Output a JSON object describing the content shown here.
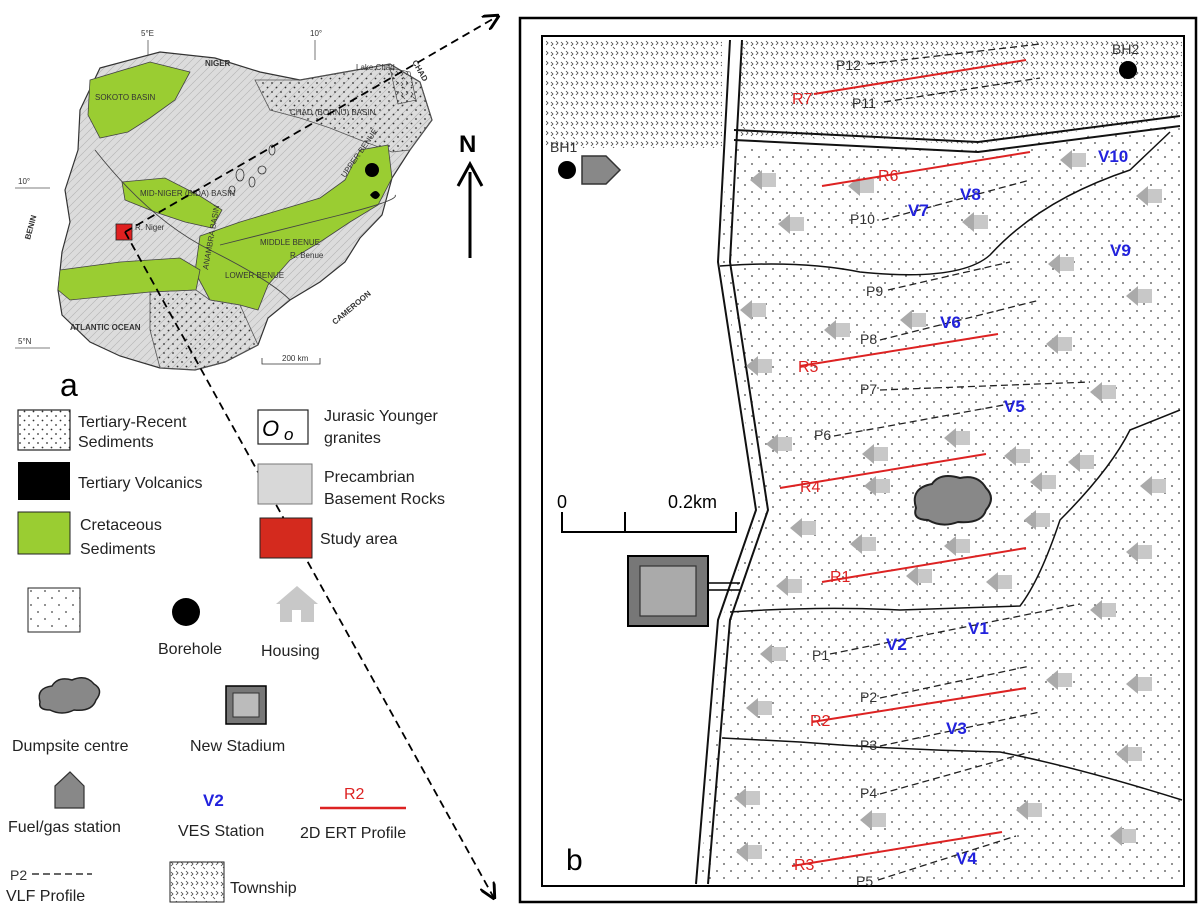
{
  "panel_a_label": "a",
  "panel_b_label": "b",
  "north_label": "N",
  "scale": {
    "zero": "0",
    "distance": "0.2km"
  },
  "index_map": {
    "countries": [
      "NIGER",
      "CHAD",
      "BENIN",
      "CAMEROON",
      "ATLANTIC OCEAN"
    ],
    "basins": [
      "SOKOTO BASIN",
      "CHAD (BORNU) BASIN",
      "MID-NIGER (BIDA) BASIN",
      "UPPER BENUE",
      "MIDDLE BENUE",
      "LOWER BENUE",
      "ANAMBRA BASIN"
    ],
    "features": [
      "Lake Chad",
      "R. Niger",
      "R. Benue"
    ],
    "graticule": [
      "5°E",
      "10°",
      "10°",
      "5°N"
    ],
    "scale_bar": "200 km"
  },
  "legend": {
    "tertiary_recent": "Tertiary-Recent Sediments",
    "jurassic": "Jurasic Younger granites",
    "tertiary_volcanics": "Tertiary Volcanics",
    "precambrian": "Precambrian Basement Rocks",
    "cretaceous": "Cretaceous Sediments",
    "study_area": "Study area",
    "borehole": "Borehole",
    "housing": "Housing",
    "dumpsite": "Dumpsite centre",
    "stadium": "New Stadium",
    "fuel": "Fuel/gas station",
    "ves_sample": "V2",
    "ves": "VES Station",
    "ert_sample": "R2",
    "ert": "2D ERT Profile",
    "vlf_sample": "P2",
    "vlf": "VLF Profile",
    "township": "Township"
  },
  "site_map": {
    "boreholes": [
      "BH1",
      "BH2"
    ],
    "ves_stations": [
      "V1",
      "V2",
      "V3",
      "V4",
      "V5",
      "V6",
      "V7",
      "V8",
      "V9",
      "V10"
    ],
    "ert_profiles": [
      "R1",
      "R2",
      "R3",
      "R4",
      "R5",
      "R6",
      "R7"
    ],
    "vlf_profiles": [
      "P1",
      "P2",
      "P3",
      "P4",
      "P5",
      "P6",
      "P7",
      "P8",
      "P9",
      "P10",
      "P11",
      "P12"
    ]
  },
  "colors": {
    "cretaceous": "#9acd32",
    "study_area": "#e02020",
    "ves": "#2222dd",
    "ert": "#dd2222",
    "basement": "#d0d0d0"
  }
}
